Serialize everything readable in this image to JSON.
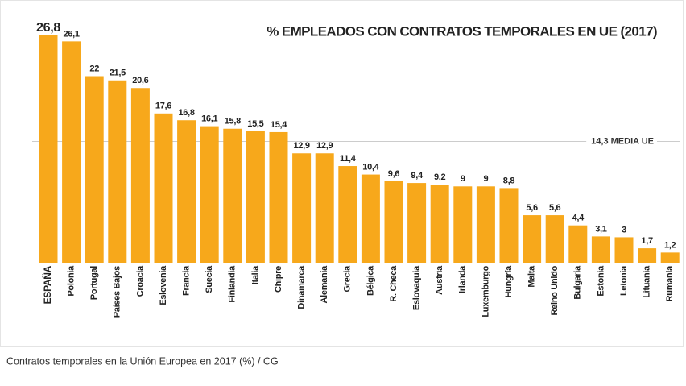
{
  "chart_data": {
    "type": "bar",
    "title": "% EMPLEADOS CON CONTRATOS TEMPORALES EN UE (2017)",
    "caption": "Contratos temporales en la Unión Europea en 2017 (%) / CG",
    "color": "#f7a81b",
    "categories": [
      "ESPAÑA",
      "Polonia",
      "Portugal",
      "Países Bajos",
      "Croacia",
      "Eslovenia",
      "Francia",
      "Suecia",
      "Finlandia",
      "Italia",
      "Chipre",
      "Dinamarca",
      "Alemania",
      "Grecia",
      "Bélgica",
      "R. Checa",
      "Eslovaquia",
      "Austria",
      "Irlanda",
      "Luxemburgo",
      "Hungría",
      "Malta",
      "Reino Unido",
      "Bulgaria",
      "Estonia",
      "Letonia",
      "Lituania",
      "Rumania"
    ],
    "values": [
      26.8,
      26.1,
      22,
      21.5,
      20.6,
      17.6,
      16.8,
      16.1,
      15.8,
      15.5,
      15.4,
      12.9,
      12.9,
      11.4,
      10.4,
      9.6,
      9.4,
      9.2,
      9,
      9,
      8.8,
      5.6,
      5.6,
      4.4,
      3.1,
      3,
      1.7,
      1.2
    ],
    "value_labels": [
      "26,8",
      "26,1",
      "22",
      "21,5",
      "20,6",
      "17,6",
      "16,8",
      "16,1",
      "15,8",
      "15,5",
      "15,4",
      "12,9",
      "12,9",
      "11,4",
      "10,4",
      "9,6",
      "9,4",
      "9,2",
      "9",
      "9",
      "8,8",
      "5,6",
      "5,6",
      "4,4",
      "3,1",
      "3",
      "1,7",
      "1,2"
    ],
    "reference_line": {
      "value": 14.3,
      "label": "14,3 MEDIA UE"
    }
  }
}
